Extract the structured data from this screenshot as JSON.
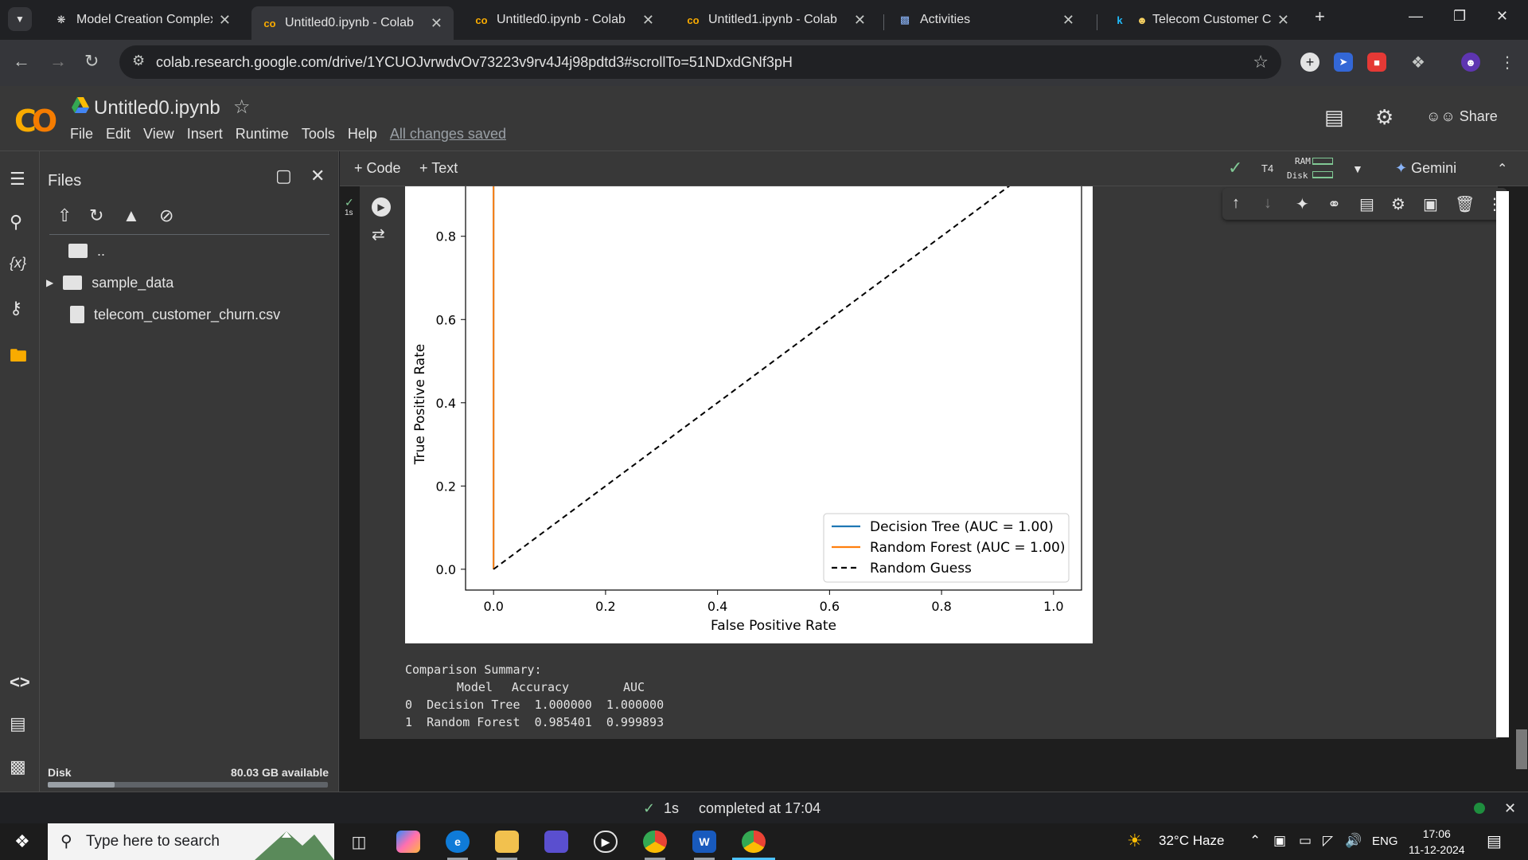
{
  "browser": {
    "tabs": [
      {
        "title": "Model Creation Complexity",
        "favicon": "openai-icon",
        "active": false
      },
      {
        "title": "Untitled0.ipynb - Colab",
        "favicon": "colab-icon",
        "active": true
      },
      {
        "title": "Untitled0.ipynb - Colab",
        "favicon": "colab-icon",
        "active": false
      },
      {
        "title": "Untitled1.ipynb - Colab",
        "favicon": "colab-icon",
        "active": false
      },
      {
        "title": "Activities",
        "favicon": "chart-icon",
        "active": false
      },
      {
        "title": "Telecom Customer C",
        "favicon": "kaggle-icon",
        "active": false
      }
    ],
    "url": "colab.research.google.com/drive/1YCUOJvrwdvOv73223v9rv4J4j98pdtd3#scrollTo=51NDxdGNf3pH"
  },
  "colab": {
    "notebook_title": "Untitled0.ipynb",
    "menu": [
      "File",
      "Edit",
      "View",
      "Insert",
      "Runtime",
      "Tools",
      "Help"
    ],
    "save_status": "All changes saved",
    "share_label": "Share",
    "add_code": "+ Code",
    "add_text": "+ Text",
    "runtime_type": "T4",
    "ram_label": "RAM",
    "disk_label": "Disk",
    "gemini_label": "Gemini",
    "cell_exec_time": "1s"
  },
  "files_panel": {
    "title": "Files",
    "items": [
      {
        "name": "..",
        "type": "parent"
      },
      {
        "name": "sample_data",
        "type": "folder"
      },
      {
        "name": "telecom_customer_churn.csv",
        "type": "file"
      }
    ],
    "disk_label": "Disk",
    "disk_available": "80.03 GB available",
    "disk_used_fraction": 0.24
  },
  "chart_data": {
    "type": "line",
    "xlabel": "False Positive Rate",
    "ylabel": "True Positive Rate",
    "xlim": [
      -0.05,
      1.05
    ],
    "ylim_visible": [
      -0.05,
      0.92
    ],
    "xticks": [
      "0.0",
      "0.2",
      "0.4",
      "0.6",
      "0.8",
      "1.0"
    ],
    "yticks": [
      "0.0",
      "0.2",
      "0.4",
      "0.6",
      "0.8"
    ],
    "legend_position": "lower-right",
    "series": [
      {
        "name": "Decision Tree (AUC = 1.00)",
        "color": "#1f77b4",
        "style": "solid",
        "x": [
          0.0,
          0.0,
          1.0
        ],
        "y": [
          0.0,
          1.0,
          1.0
        ]
      },
      {
        "name": "Random Forest (AUC = 1.00)",
        "color": "#ff7f0e",
        "style": "solid",
        "x": [
          0.0,
          0.0,
          1.0
        ],
        "y": [
          0.0,
          1.0,
          1.0
        ]
      },
      {
        "name": "Random Guess",
        "color": "#000000",
        "style": "dashed",
        "x": [
          0.0,
          1.0
        ],
        "y": [
          0.0,
          1.0
        ]
      }
    ]
  },
  "summary": {
    "heading": "Comparison Summary:",
    "columns": [
      "Model",
      "Accuracy",
      "AUC"
    ],
    "rows": [
      {
        "idx": "0",
        "model": "Decision Tree",
        "accuracy": "1.000000",
        "auc": "1.000000"
      },
      {
        "idx": "1",
        "model": "Random Forest",
        "accuracy": "0.985401",
        "auc": "0.999893"
      }
    ]
  },
  "status_bar": {
    "exec_time": "1s",
    "completed": "completed at 17:04"
  },
  "taskbar": {
    "search_placeholder": "Type here to search",
    "weather": "32°C  Haze",
    "language": "ENG",
    "time": "17:06",
    "date": "11-12-2024"
  }
}
